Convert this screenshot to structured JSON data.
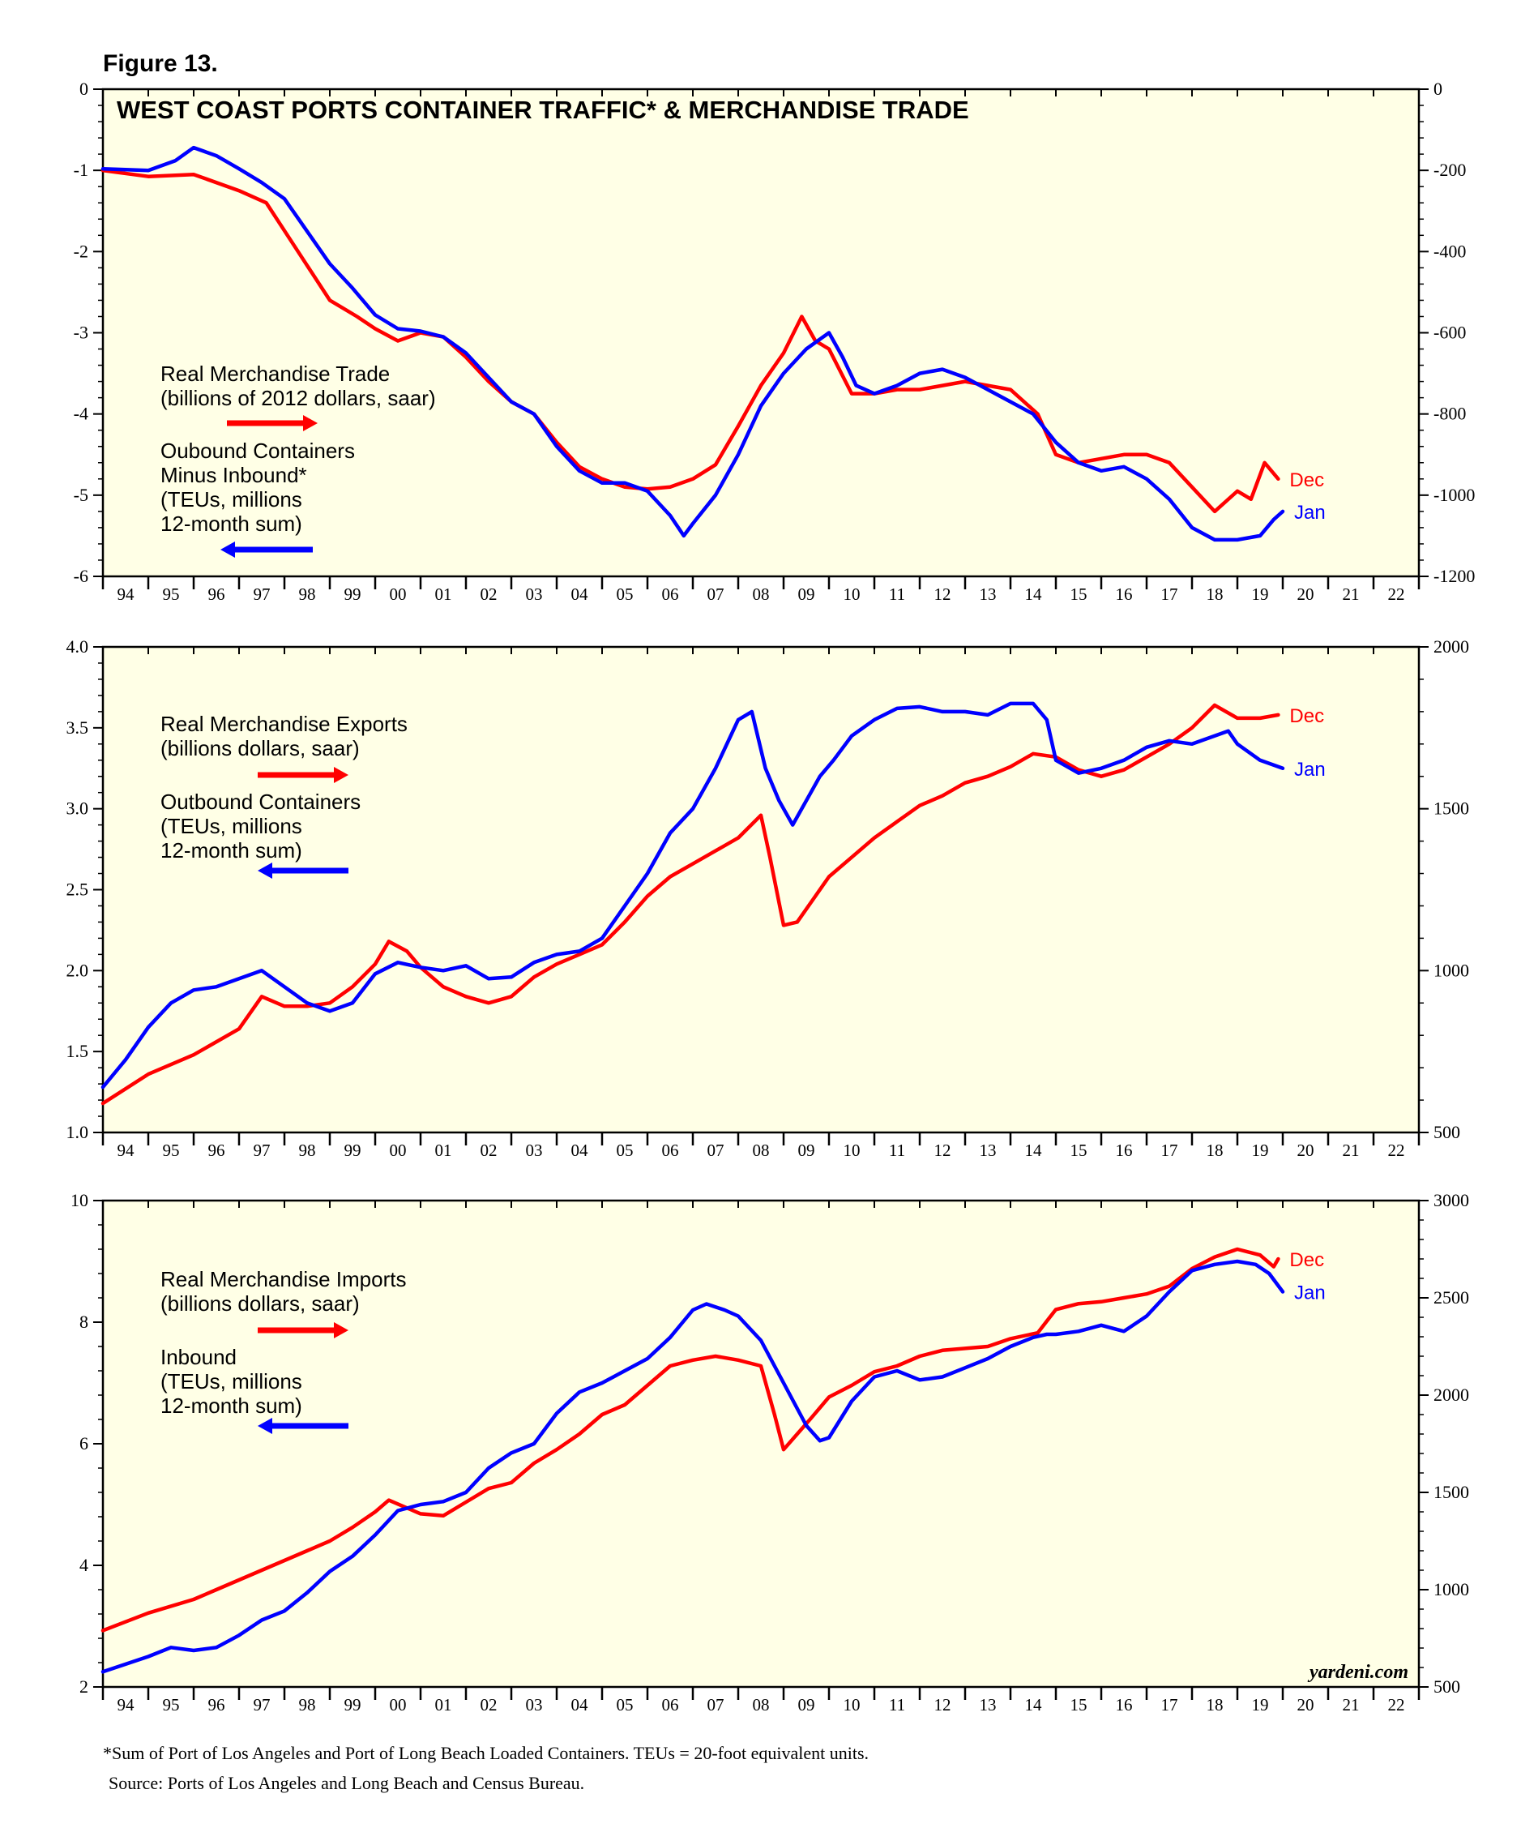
{
  "figure_label": "Figure 13.",
  "footnote": "*Sum of Port of Los Angeles and Port of Long Beach Loaded Containers. TEUs = 20-foot equivalent units.",
  "source": "Source: Ports of Los Angeles and Long Beach and Census Bureau.",
  "brand": "yardeni.com",
  "colors": {
    "red": "#ff0000",
    "blue": "#0000ff",
    "background": "#ffffe6",
    "frame": "#000000"
  },
  "chart_data": [
    {
      "type": "line",
      "title": "WEST COAST PORTS CONTAINER TRAFFIC* & MERCHANDISE TRADE",
      "x_tick_labels": [
        "94",
        "95",
        "96",
        "97",
        "98",
        "99",
        "00",
        "01",
        "02",
        "03",
        "04",
        "05",
        "06",
        "07",
        "08",
        "09",
        "10",
        "11",
        "12",
        "13",
        "14",
        "15",
        "16",
        "17",
        "18",
        "19",
        "20",
        "21",
        "22"
      ],
      "xlim": [
        1994,
        2023
      ],
      "left_axis": {
        "ylim": [
          -6,
          0
        ],
        "ticks": [
          0,
          -1,
          -2,
          -3,
          -4,
          -5,
          -6
        ],
        "tick_labels": [
          "0",
          "-1",
          "-2",
          "-3",
          "-4",
          "-5",
          "-6"
        ]
      },
      "right_axis": {
        "ylim": [
          -1200,
          0
        ],
        "ticks": [
          0,
          -200,
          -400,
          -600,
          -800,
          -1000,
          -1200
        ],
        "tick_labels": [
          "0",
          "-200",
          "-400",
          "-600",
          "-800",
          "-1000",
          "-1200"
        ]
      },
      "legend_lines": {
        "red": [
          "Real Merchandise Trade",
          "(billions of 2012 dollars, saar)"
        ],
        "blue": [
          "Oubound Containers",
          "Minus Inbound*",
          "(TEUs, millions",
          "12-month sum)"
        ]
      },
      "series": [
        {
          "name": "Real Merchandise Trade",
          "color": "red",
          "axis": "right",
          "end_label": "Dec",
          "x": [
            1994.0,
            1995.0,
            1996.0,
            1997.0,
            1997.6,
            1998.3,
            1999.0,
            1999.6,
            2000.0,
            2000.5,
            2001.0,
            2001.5,
            2002.0,
            2002.5,
            2003.0,
            2003.5,
            2004.0,
            2004.5,
            2005.0,
            2005.5,
            2006.0,
            2006.5,
            2007.0,
            2007.5,
            2008.0,
            2008.5,
            2009.0,
            2009.4,
            2009.7,
            2010.0,
            2010.5,
            2011.0,
            2011.5,
            2012.0,
            2013.0,
            2013.5,
            2014.0,
            2014.6,
            2015.0,
            2015.5,
            2016.0,
            2016.5,
            2017.0,
            2017.5,
            2018.0,
            2018.5,
            2019.0,
            2019.3,
            2019.6,
            2019.9
          ],
          "values": [
            -200,
            -215,
            -210,
            -250,
            -280,
            -400,
            -520,
            -560,
            -590,
            -620,
            -600,
            -610,
            -660,
            -720,
            -770,
            -800,
            -870,
            -930,
            -960,
            -980,
            -985,
            -980,
            -960,
            -925,
            -830,
            -730,
            -650,
            -560,
            -620,
            -640,
            -750,
            -750,
            -740,
            -740,
            -720,
            -730,
            -740,
            -800,
            -900,
            -920,
            -910,
            -900,
            -900,
            -920,
            -980,
            -1040,
            -990,
            -1010,
            -920,
            -960
          ]
        },
        {
          "name": "Oubound Containers Minus Inbound",
          "color": "blue",
          "axis": "left",
          "end_label": "Jan",
          "x": [
            1994.0,
            1995.0,
            1995.6,
            1996.0,
            1996.5,
            1997.0,
            1997.5,
            1998.0,
            1998.5,
            1999.0,
            1999.5,
            2000.0,
            2000.5,
            2001.0,
            2001.5,
            2002.0,
            2002.5,
            2003.0,
            2003.5,
            2004.0,
            2004.5,
            2005.0,
            2005.5,
            2006.0,
            2006.5,
            2006.8,
            2007.0,
            2007.5,
            2008.0,
            2008.5,
            2009.0,
            2009.5,
            2010.0,
            2010.3,
            2010.6,
            2011.0,
            2011.5,
            2012.0,
            2012.5,
            2013.0,
            2013.5,
            2014.0,
            2014.5,
            2015.0,
            2015.5,
            2016.0,
            2016.5,
            2017.0,
            2017.5,
            2018.0,
            2018.5,
            2019.0,
            2019.5,
            2019.8,
            2020.0
          ],
          "values": [
            -0.98,
            -1.0,
            -0.88,
            -0.72,
            -0.82,
            -0.98,
            -1.15,
            -1.35,
            -1.75,
            -2.15,
            -2.45,
            -2.78,
            -2.95,
            -2.98,
            -3.05,
            -3.25,
            -3.55,
            -3.85,
            -4.0,
            -4.4,
            -4.7,
            -4.85,
            -4.85,
            -4.95,
            -5.25,
            -5.5,
            -5.35,
            -5.0,
            -4.5,
            -3.9,
            -3.5,
            -3.2,
            -3.0,
            -3.3,
            -3.65,
            -3.75,
            -3.65,
            -3.5,
            -3.45,
            -3.55,
            -3.7,
            -3.85,
            -4.0,
            -4.35,
            -4.6,
            -4.7,
            -4.65,
            -4.8,
            -5.05,
            -5.4,
            -5.55,
            -5.55,
            -5.5,
            -5.3,
            -5.2
          ]
        }
      ]
    },
    {
      "type": "line",
      "title": "",
      "x_tick_labels": [
        "94",
        "95",
        "96",
        "97",
        "98",
        "99",
        "00",
        "01",
        "02",
        "03",
        "04",
        "05",
        "06",
        "07",
        "08",
        "09",
        "10",
        "11",
        "12",
        "13",
        "14",
        "15",
        "16",
        "17",
        "18",
        "19",
        "20",
        "21",
        "22"
      ],
      "xlim": [
        1994,
        2023
      ],
      "left_axis": {
        "ylim": [
          1.0,
          4.0
        ],
        "ticks": [
          1.0,
          1.5,
          2.0,
          2.5,
          3.0,
          3.5,
          4.0
        ],
        "tick_labels": [
          "1.0",
          "1.5",
          "2.0",
          "2.5",
          "3.0",
          "3.5",
          "4.0"
        ]
      },
      "right_axis": {
        "ylim": [
          500,
          2000
        ],
        "ticks": [
          500,
          1000,
          1500,
          2000
        ],
        "tick_labels": [
          "500",
          "1000",
          "1500",
          "2000"
        ]
      },
      "legend_lines": {
        "red": [
          "Real Merchandise Exports",
          "(billions dollars, saar)"
        ],
        "blue": [
          "Outbound Containers",
          "(TEUs, millions",
          "12-month sum)"
        ]
      },
      "series": [
        {
          "name": "Real Merchandise Exports",
          "color": "red",
          "axis": "right",
          "end_label": "Dec",
          "x": [
            1994.0,
            1995.0,
            1996.0,
            1997.0,
            1997.5,
            1998.0,
            1998.5,
            1999.0,
            1999.5,
            2000.0,
            2000.3,
            2000.7,
            2001.0,
            2001.5,
            2002.0,
            2002.5,
            2003.0,
            2003.5,
            2004.0,
            2004.5,
            2005.0,
            2005.5,
            2006.0,
            2006.5,
            2007.0,
            2007.5,
            2008.0,
            2008.5,
            2008.7,
            2009.0,
            2009.3,
            2009.7,
            2010.0,
            2010.5,
            2011.0,
            2011.5,
            2012.0,
            2012.5,
            2013.0,
            2013.5,
            2014.0,
            2014.5,
            2015.0,
            2015.5,
            2016.0,
            2016.5,
            2017.0,
            2017.5,
            2018.0,
            2018.5,
            2019.0,
            2019.5,
            2019.9
          ],
          "values": [
            590,
            680,
            740,
            820,
            920,
            890,
            890,
            900,
            950,
            1020,
            1090,
            1060,
            1010,
            950,
            920,
            900,
            920,
            980,
            1020,
            1050,
            1080,
            1150,
            1230,
            1290,
            1330,
            1370,
            1410,
            1480,
            1350,
            1140,
            1150,
            1230,
            1290,
            1350,
            1410,
            1460,
            1510,
            1540,
            1580,
            1600,
            1630,
            1670,
            1660,
            1620,
            1600,
            1620,
            1660,
            1700,
            1750,
            1820,
            1780,
            1780,
            1790
          ]
        },
        {
          "name": "Outbound Containers",
          "color": "blue",
          "axis": "left",
          "end_label": "Jan",
          "x": [
            1994.0,
            1994.5,
            1995.0,
            1995.5,
            1996.0,
            1996.5,
            1997.0,
            1997.5,
            1998.0,
            1998.5,
            1999.0,
            1999.5,
            2000.0,
            2000.5,
            2001.0,
            2001.5,
            2002.0,
            2002.5,
            2003.0,
            2003.5,
            2004.0,
            2004.5,
            2005.0,
            2005.5,
            2006.0,
            2006.5,
            2007.0,
            2007.5,
            2008.0,
            2008.3,
            2008.6,
            2008.9,
            2009.2,
            2009.5,
            2009.8,
            2010.1,
            2010.5,
            2011.0,
            2011.5,
            2012.0,
            2012.5,
            2013.0,
            2013.5,
            2014.0,
            2014.5,
            2014.8,
            2015.0,
            2015.5,
            2016.0,
            2016.5,
            2017.0,
            2017.5,
            2018.0,
            2018.5,
            2018.8,
            2019.0,
            2019.5,
            2020.0
          ],
          "values": [
            1.28,
            1.45,
            1.65,
            1.8,
            1.88,
            1.9,
            1.95,
            2.0,
            1.9,
            1.8,
            1.75,
            1.8,
            1.98,
            2.05,
            2.02,
            2.0,
            2.03,
            1.95,
            1.96,
            2.05,
            2.1,
            2.12,
            2.2,
            2.4,
            2.6,
            2.85,
            3.0,
            3.25,
            3.55,
            3.6,
            3.25,
            3.05,
            2.9,
            3.05,
            3.2,
            3.3,
            3.45,
            3.55,
            3.62,
            3.63,
            3.6,
            3.6,
            3.58,
            3.65,
            3.65,
            3.55,
            3.3,
            3.22,
            3.25,
            3.3,
            3.38,
            3.42,
            3.4,
            3.45,
            3.48,
            3.4,
            3.3,
            3.25
          ]
        }
      ]
    },
    {
      "type": "line",
      "title": "",
      "x_tick_labels": [
        "94",
        "95",
        "96",
        "97",
        "98",
        "99",
        "00",
        "01",
        "02",
        "03",
        "04",
        "05",
        "06",
        "07",
        "08",
        "09",
        "10",
        "11",
        "12",
        "13",
        "14",
        "15",
        "16",
        "17",
        "18",
        "19",
        "20",
        "21",
        "22"
      ],
      "xlim": [
        1994,
        2023
      ],
      "left_axis": {
        "ylim": [
          2,
          10
        ],
        "ticks": [
          2,
          4,
          6,
          8,
          10
        ],
        "tick_labels": [
          "2",
          "4",
          "6",
          "8",
          "10"
        ]
      },
      "right_axis": {
        "ylim": [
          500,
          3000
        ],
        "ticks": [
          500,
          1000,
          1500,
          2000,
          2500,
          3000
        ],
        "tick_labels": [
          "500",
          "1000",
          "1500",
          "2000",
          "2500",
          "3000"
        ]
      },
      "legend_lines": {
        "red": [
          "Real Merchandise Imports",
          "(billions dollars, saar)"
        ],
        "blue": [
          "Inbound",
          "(TEUs, millions",
          "12-month sum)"
        ]
      },
      "series": [
        {
          "name": "Real Merchandise Imports",
          "color": "red",
          "axis": "right",
          "end_label": "Dec",
          "x": [
            1994.0,
            1995.0,
            1996.0,
            1996.5,
            1997.0,
            1997.5,
            1998.0,
            1998.5,
            1999.0,
            1999.5,
            2000.0,
            2000.3,
            2000.7,
            2001.0,
            2001.5,
            2002.0,
            2002.5,
            2003.0,
            2003.5,
            2004.0,
            2004.5,
            2005.0,
            2005.5,
            2006.0,
            2006.5,
            2007.0,
            2007.5,
            2008.0,
            2008.5,
            2008.8,
            2009.0,
            2009.3,
            2009.6,
            2010.0,
            2010.5,
            2011.0,
            2011.5,
            2012.0,
            2012.5,
            2013.0,
            2013.5,
            2014.0,
            2014.6,
            2014.8,
            2015.0,
            2015.5,
            2016.0,
            2016.5,
            2017.0,
            2017.5,
            2018.0,
            2018.5,
            2019.0,
            2019.5,
            2019.8,
            2019.9
          ],
          "values": [
            790,
            880,
            950,
            1000,
            1050,
            1100,
            1150,
            1200,
            1250,
            1320,
            1400,
            1460,
            1420,
            1390,
            1380,
            1450,
            1520,
            1550,
            1650,
            1720,
            1800,
            1900,
            1950,
            2050,
            2150,
            2180,
            2200,
            2180,
            2150,
            1900,
            1720,
            1800,
            1880,
            1990,
            2050,
            2120,
            2150,
            2200,
            2230,
            2240,
            2250,
            2290,
            2320,
            2380,
            2440,
            2470,
            2480,
            2500,
            2520,
            2560,
            2650,
            2710,
            2750,
            2720,
            2660,
            2700
          ]
        },
        {
          "name": "Inbound",
          "color": "blue",
          "axis": "left",
          "end_label": "Jan",
          "x": [
            1994.0,
            1995.0,
            1995.5,
            1996.0,
            1996.5,
            1997.0,
            1997.5,
            1998.0,
            1998.5,
            1999.0,
            1999.5,
            2000.0,
            2000.5,
            2001.0,
            2001.5,
            2002.0,
            2002.5,
            2003.0,
            2003.5,
            2004.0,
            2004.5,
            2005.0,
            2005.5,
            2006.0,
            2006.5,
            2007.0,
            2007.3,
            2007.7,
            2008.0,
            2008.5,
            2009.0,
            2009.5,
            2009.8,
            2010.0,
            2010.5,
            2011.0,
            2011.5,
            2012.0,
            2012.5,
            2013.0,
            2013.5,
            2014.0,
            2014.5,
            2014.8,
            2015.0,
            2015.5,
            2016.0,
            2016.5,
            2017.0,
            2017.5,
            2018.0,
            2018.5,
            2019.0,
            2019.4,
            2019.7,
            2020.0
          ],
          "values": [
            2.25,
            2.5,
            2.65,
            2.6,
            2.65,
            2.85,
            3.1,
            3.25,
            3.55,
            3.9,
            4.15,
            4.5,
            4.9,
            5.0,
            5.05,
            5.2,
            5.6,
            5.85,
            6.0,
            6.5,
            6.85,
            7.0,
            7.2,
            7.4,
            7.75,
            8.2,
            8.3,
            8.2,
            8.1,
            7.7,
            7.0,
            6.3,
            6.05,
            6.1,
            6.7,
            7.1,
            7.2,
            7.05,
            7.1,
            7.25,
            7.4,
            7.6,
            7.75,
            7.8,
            7.8,
            7.85,
            7.95,
            7.85,
            8.1,
            8.5,
            8.85,
            8.95,
            9.0,
            8.95,
            8.8,
            8.5
          ]
        }
      ]
    }
  ]
}
